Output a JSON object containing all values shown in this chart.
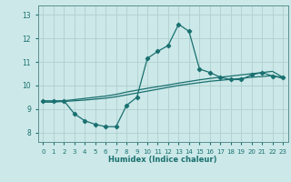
{
  "xlabel": "Humidex (Indice chaleur)",
  "xlim": [
    -0.5,
    23.5
  ],
  "ylim": [
    7.6,
    13.4
  ],
  "yticks": [
    8,
    9,
    10,
    11,
    12,
    13
  ],
  "xticks": [
    0,
    1,
    2,
    3,
    4,
    5,
    6,
    7,
    8,
    9,
    10,
    11,
    12,
    13,
    14,
    15,
    16,
    17,
    18,
    19,
    20,
    21,
    22,
    23
  ],
  "bg_color": "#cce8e8",
  "line_color": "#1a7070",
  "grid_color": "#b0d0d0",
  "line1_x": [
    0,
    1,
    2,
    3,
    4,
    5,
    6,
    7,
    8,
    9,
    10,
    11,
    12,
    13,
    14,
    15,
    16,
    17,
    18,
    19,
    20,
    21,
    22,
    23
  ],
  "line1_y": [
    9.35,
    9.35,
    9.35,
    8.8,
    8.5,
    8.35,
    8.25,
    8.25,
    9.15,
    9.5,
    11.15,
    11.45,
    11.7,
    12.6,
    12.3,
    10.7,
    10.55,
    10.35,
    10.25,
    10.25,
    10.45,
    10.55,
    10.4,
    10.35
  ],
  "line2_x": [
    0,
    1,
    2,
    3,
    4,
    5,
    6,
    7,
    8,
    9,
    10,
    11,
    12,
    13,
    14,
    15,
    16,
    17,
    18,
    19,
    20,
    21,
    22,
    23
  ],
  "line2_y": [
    9.3,
    9.3,
    9.35,
    9.4,
    9.45,
    9.5,
    9.55,
    9.62,
    9.72,
    9.8,
    9.88,
    9.95,
    10.02,
    10.1,
    10.17,
    10.24,
    10.3,
    10.35,
    10.4,
    10.45,
    10.5,
    10.55,
    10.6,
    10.35
  ],
  "line3_x": [
    0,
    1,
    2,
    3,
    4,
    5,
    6,
    7,
    8,
    9,
    10,
    11,
    12,
    13,
    14,
    15,
    16,
    17,
    18,
    19,
    20,
    21,
    22,
    23
  ],
  "line3_y": [
    9.3,
    9.3,
    9.32,
    9.35,
    9.38,
    9.42,
    9.46,
    9.52,
    9.6,
    9.68,
    9.76,
    9.84,
    9.92,
    10.0,
    10.06,
    10.12,
    10.18,
    10.22,
    10.26,
    10.3,
    10.35,
    10.38,
    10.42,
    10.3
  ]
}
